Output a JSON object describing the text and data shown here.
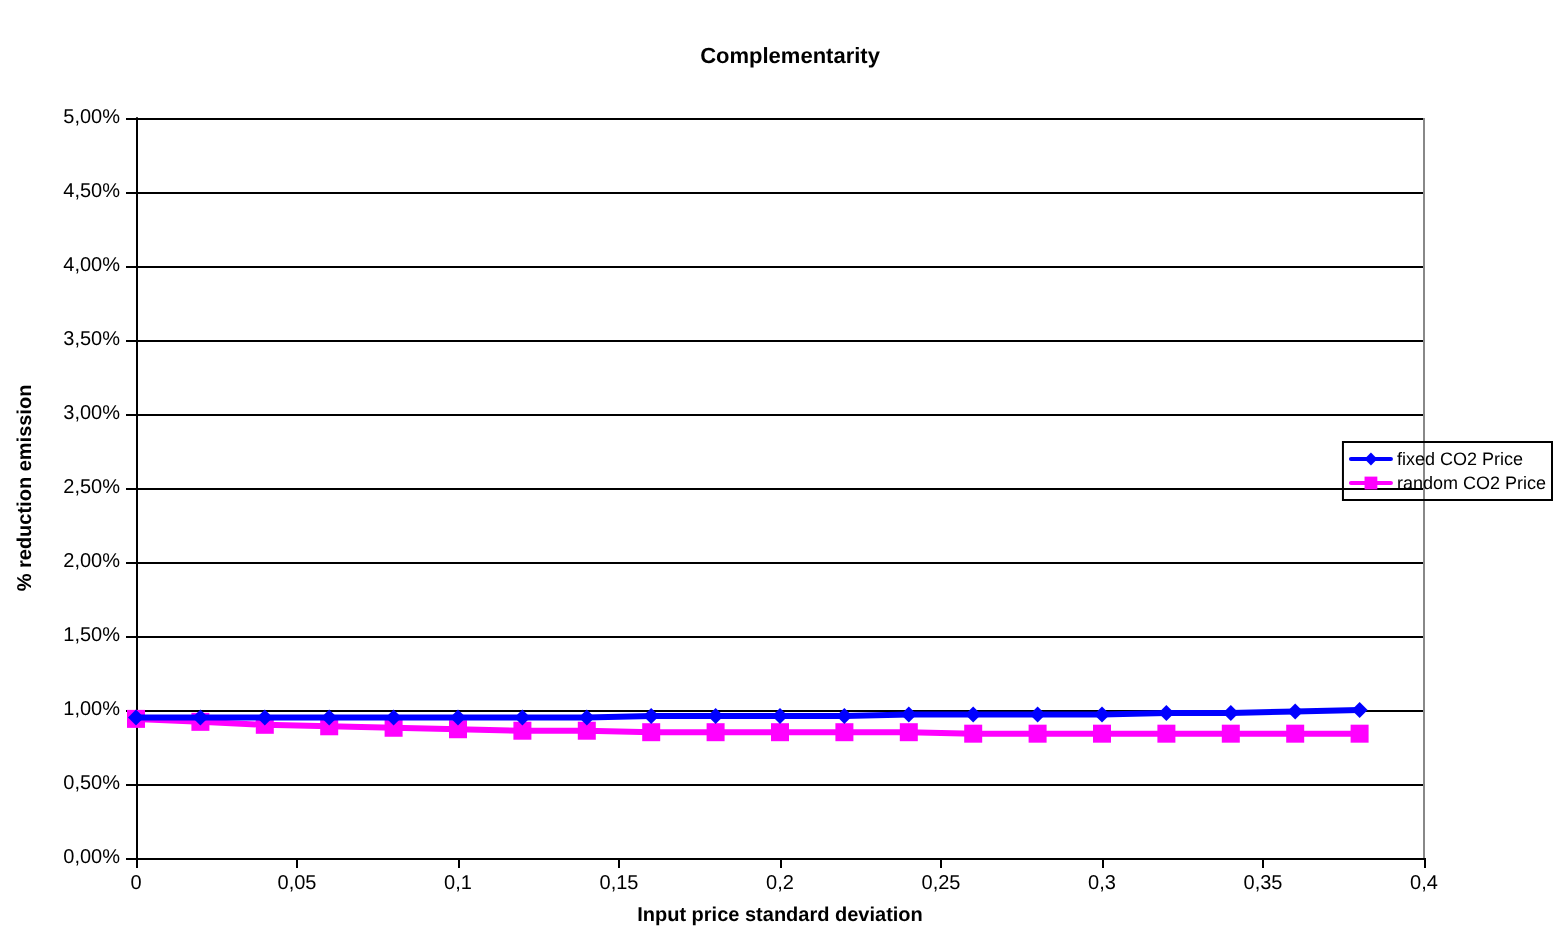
{
  "chart_data": {
    "type": "line",
    "title": "Complementarity",
    "xlabel": "Input price standard deviation",
    "ylabel": "% reduction emission",
    "x": [
      0,
      0.02,
      0.04,
      0.06,
      0.08,
      0.1,
      0.12,
      0.14,
      0.16,
      0.18,
      0.2,
      0.22,
      0.24,
      0.26,
      0.28,
      0.3,
      0.32,
      0.34,
      0.36,
      0.38
    ],
    "series": [
      {
        "name": "fixed CO2 Price",
        "color": "#0000ff",
        "marker": "diamond",
        "values": [
          0.95,
          0.95,
          0.95,
          0.95,
          0.95,
          0.95,
          0.95,
          0.95,
          0.96,
          0.96,
          0.96,
          0.96,
          0.97,
          0.97,
          0.97,
          0.97,
          0.98,
          0.98,
          0.99,
          1.0
        ]
      },
      {
        "name": "random CO2 Price",
        "color": "#ff00ff",
        "marker": "square",
        "values": [
          0.94,
          0.92,
          0.9,
          0.89,
          0.88,
          0.87,
          0.86,
          0.86,
          0.85,
          0.85,
          0.85,
          0.85,
          0.85,
          0.84,
          0.84,
          0.84,
          0.84,
          0.84,
          0.84,
          0.84
        ]
      }
    ],
    "xlim": [
      0,
      0.4
    ],
    "xticks": [
      0,
      {
        "value": 0.05,
        "label": "0,05"
      },
      {
        "value": 0.1,
        "label": "0,1"
      },
      {
        "value": 0.15,
        "label": "0,15"
      },
      {
        "value": 0.2,
        "label": "0,2"
      },
      {
        "value": 0.25,
        "label": "0,25"
      },
      {
        "value": 0.3,
        "label": "0,3"
      },
      {
        "value": 0.35,
        "label": "0,35"
      },
      {
        "value": 0.4,
        "label": "0,4"
      }
    ],
    "ylim": [
      0,
      5
    ],
    "yticks": [
      {
        "value": 0,
        "label": "0,00%"
      },
      {
        "value": 0.5,
        "label": "0,50%"
      },
      {
        "value": 1,
        "label": "1,00%"
      },
      {
        "value": 1.5,
        "label": "1,50%"
      },
      {
        "value": 2,
        "label": "2,00%"
      },
      {
        "value": 2.5,
        "label": "2,50%"
      },
      {
        "value": 3,
        "label": "3,00%"
      },
      {
        "value": 3.5,
        "label": "3,50%"
      },
      {
        "value": 4,
        "label": "4,00%"
      },
      {
        "value": 4.5,
        "label": "4,50%"
      },
      {
        "value": 5,
        "label": "5,00%"
      }
    ],
    "grid": "y",
    "legend": "right",
    "line_style": "solid"
  }
}
